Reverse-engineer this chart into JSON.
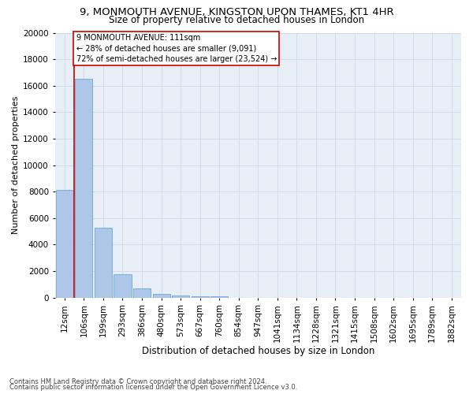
{
  "title1": "9, MONMOUTH AVENUE, KINGSTON UPON THAMES, KT1 4HR",
  "title2": "Size of property relative to detached houses in London",
  "xlabel": "Distribution of detached houses by size in London",
  "ylabel": "Number of detached properties",
  "property_line_label": "9 MONMOUTH AVENUE: 111sqm",
  "annotation_line1": "← 28% of detached houses are smaller (9,091)",
  "annotation_line2": "72% of semi-detached houses are larger (23,524) →",
  "footer1": "Contains HM Land Registry data © Crown copyright and database right 2024.",
  "footer2": "Contains public sector information licensed under the Open Government Licence v3.0.",
  "categories": [
    "12sqm",
    "106sqm",
    "199sqm",
    "293sqm",
    "386sqm",
    "480sqm",
    "573sqm",
    "667sqm",
    "760sqm",
    "854sqm",
    "947sqm",
    "1041sqm",
    "1134sqm",
    "1228sqm",
    "1321sqm",
    "1415sqm",
    "1508sqm",
    "1602sqm",
    "1695sqm",
    "1789sqm",
    "1882sqm"
  ],
  "values": [
    8100,
    16500,
    5300,
    1750,
    700,
    280,
    180,
    100,
    80,
    0,
    0,
    0,
    0,
    0,
    0,
    0,
    0,
    0,
    0,
    0,
    0
  ],
  "bar_color": "#aec6e8",
  "bar_edge_color": "#5a9fd4",
  "vline_color": "#cc0000",
  "vline_x_index": 1,
  "annotation_box_color": "#cc0000",
  "ylim": [
    0,
    20000
  ],
  "yticks": [
    0,
    2000,
    4000,
    6000,
    8000,
    10000,
    12000,
    14000,
    16000,
    18000,
    20000
  ],
  "grid_color": "#d0d8e8",
  "bg_color": "#e8eef5",
  "title_fontsize": 9.5,
  "subtitle_fontsize": 8.5,
  "axis_label_fontsize": 8,
  "tick_fontsize": 7.5,
  "footer_fontsize": 6
}
